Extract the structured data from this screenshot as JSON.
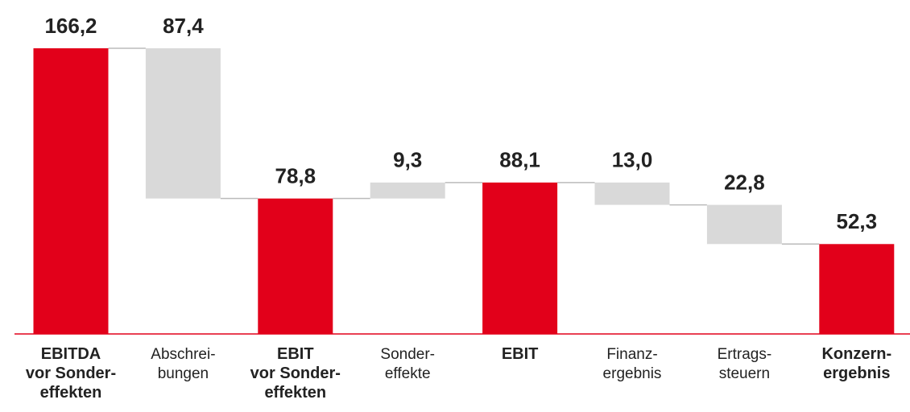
{
  "chart_data": {
    "type": "waterfall",
    "categories": [
      [
        "EBITDA",
        "vor Sonder-",
        "effekten"
      ],
      [
        "Abschrei-",
        "bungen"
      ],
      [
        "EBIT",
        "vor Sonder-",
        "effekten"
      ],
      [
        "Sonder-",
        "effekte"
      ],
      [
        "EBIT"
      ],
      [
        "Finanz-",
        "ergebnis"
      ],
      [
        "Ertrags-",
        "steuern"
      ],
      [
        "Konzern-",
        "ergebnis"
      ]
    ],
    "measure": [
      "total",
      "decrease",
      "total",
      "increase",
      "total",
      "decrease",
      "decrease",
      "total"
    ],
    "values": [
      166.2,
      87.4,
      78.8,
      9.3,
      88.1,
      13.0,
      22.8,
      52.3
    ],
    "value_labels": [
      "166,2",
      "87,4",
      "78,8",
      "9,3",
      "88,1",
      "13,0",
      "22,8",
      "52,3"
    ],
    "total_color": "#e2001a",
    "change_color": "#d9d9d9"
  }
}
